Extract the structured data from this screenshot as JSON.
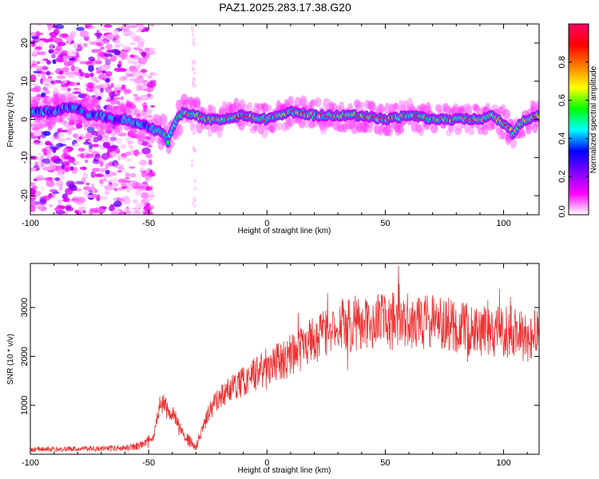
{
  "title": "PAZ1.2025.283.17.38.G20",
  "chart_data": [
    {
      "type": "heatmap",
      "name": "spectrogram",
      "xlabel": "Height of straight line (km)",
      "ylabel": "Frequency (Hz)",
      "xlim": [
        -100,
        115
      ],
      "ylim": [
        -25,
        25
      ],
      "xticks": [
        -100,
        -50,
        0,
        50,
        100
      ],
      "yticks": [
        -20,
        -10,
        0,
        10,
        20
      ],
      "colorbar": {
        "label": "Normalized spectral amplitude",
        "range": [
          0,
          1
        ],
        "ticks": [
          "0.0",
          "0.2",
          "0.4",
          "0.6",
          "0.8"
        ],
        "stops": [
          "#ffffff",
          "#ff00ff",
          "#8000ff",
          "#0000ff",
          "#00ffff",
          "#00ff00",
          "#ffff00",
          "#ff8000",
          "#ff0000",
          "#ff0066"
        ]
      },
      "ridge": {
        "x": [
          -100,
          -90,
          -85,
          -80,
          -75,
          -70,
          -65,
          -60,
          -55,
          -50,
          -47,
          -45,
          -43,
          -42,
          -40,
          -38,
          -35,
          -30,
          -25,
          -20,
          -10,
          0,
          10,
          20,
          30,
          40,
          50,
          60,
          70,
          80,
          90,
          95,
          100,
          103,
          104,
          105,
          107,
          110,
          115
        ],
        "y": [
          2,
          2,
          3,
          3,
          1,
          1,
          0,
          0,
          -1,
          -2,
          -3,
          -3,
          -4,
          -6,
          -2,
          0,
          2,
          1,
          0,
          0,
          1,
          0,
          2,
          1,
          1,
          1,
          0,
          1,
          0,
          0,
          0,
          1,
          -1,
          -3,
          -4,
          -3,
          -1,
          0,
          1
        ]
      }
    },
    {
      "type": "line",
      "name": "snr",
      "xlabel": "Height of straight line (km)",
      "ylabel": "SNR (10 * v/v)",
      "xlim": [
        -100,
        115
      ],
      "ylim": [
        0,
        3900
      ],
      "xticks": [
        -100,
        -50,
        0,
        50,
        100
      ],
      "yticks": [
        1000,
        2000,
        3000
      ],
      "series": [
        {
          "name": "SNR",
          "color": "#ee3333",
          "envelope_x": [
            -100,
            -80,
            -60,
            -52,
            -48,
            -45,
            -42,
            -38,
            -35,
            -30,
            -25,
            -20,
            -10,
            0,
            10,
            20,
            30,
            40,
            50,
            60,
            70,
            80,
            90,
            100,
            110,
            115
          ],
          "envelope_y": [
            100,
            110,
            130,
            180,
            350,
            1100,
            900,
            700,
            350,
            150,
            800,
            1200,
            1500,
            1800,
            2000,
            2350,
            2600,
            2700,
            2700,
            2750,
            2700,
            2600,
            2500,
            2500,
            2400,
            2400
          ]
        }
      ]
    }
  ]
}
